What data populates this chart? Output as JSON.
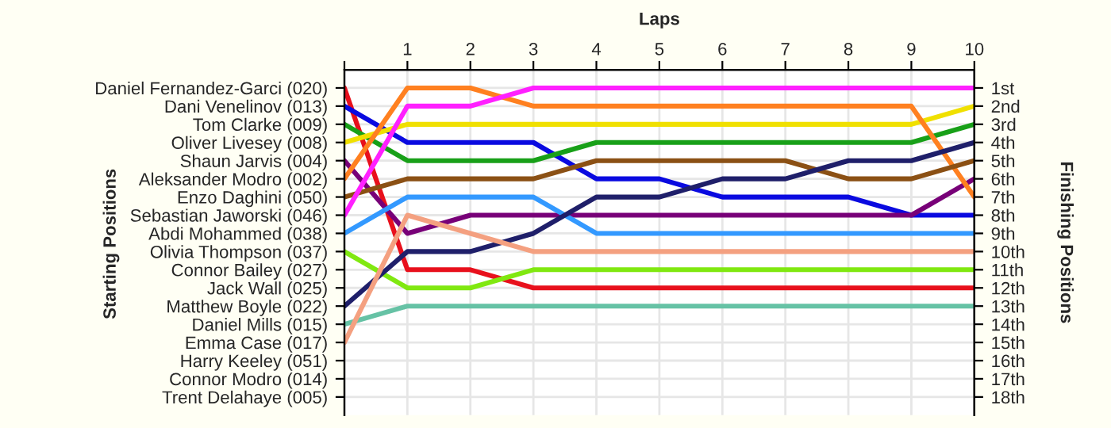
{
  "chart_data": {
    "type": "line",
    "xlabel": "Laps",
    "ylabel": "Finishing Positions",
    "x": [
      0,
      1,
      2,
      3,
      4,
      5,
      6,
      7,
      8,
      9,
      10
    ],
    "xlim": [
      0,
      10
    ],
    "xticks": [
      {
        "value": 0,
        "label": null
      },
      1,
      2,
      3,
      4,
      5,
      6,
      7,
      8,
      9,
      10
    ],
    "ylim": [
      19,
      0
    ],
    "yticks": [
      {
        "value": 1,
        "label": "1st"
      },
      {
        "value": 2,
        "label": "2nd"
      },
      {
        "value": 3,
        "label": "3rd"
      },
      {
        "value": 4,
        "label": "4th"
      },
      {
        "value": 5,
        "label": "5th"
      },
      {
        "value": 6,
        "label": "6th"
      },
      {
        "value": 7,
        "label": "7th"
      },
      {
        "value": 8,
        "label": "8th"
      },
      {
        "value": 9,
        "label": "9th"
      },
      {
        "value": 10,
        "label": "10th"
      },
      {
        "value": 11,
        "label": "11th"
      },
      {
        "value": 12,
        "label": "12th"
      },
      {
        "value": 13,
        "label": "13th"
      },
      {
        "value": 14,
        "label": "14th"
      },
      {
        "value": 15,
        "label": "15th"
      },
      {
        "value": 16,
        "label": "16th"
      },
      {
        "value": 17,
        "label": "17th"
      },
      {
        "value": 18,
        "label": "18th"
      }
    ],
    "annotations": [
      "Daniel Fernandez-Garci (020)",
      "Dani Venelinov (013)",
      "Tom Clarke (009)",
      "Oliver Livesey (008)",
      "Shaun Jarvis (004)",
      "Aleksander Modro (002)",
      "Enzo Daghini (050)",
      "Sebastian Jaworski (046)",
      "Abdi Mohammed (038)",
      "Olivia Thompson (037)",
      "Connor Bailey (027)",
      "Jack Wall (025)",
      "Matthew Boyle (022)",
      "Daniel Mills (015)",
      "Emma Case (017)",
      "Harry Keeley (051)",
      "Connor Modro (014)",
      "Trent Delahaye (005)",
      "Starting Positions"
    ],
    "grid": true,
    "legend": false,
    "marker": "none",
    "line_style": "solid",
    "series": [
      {
        "color": "#e8101c",
        "values": [
          1,
          11,
          11,
          12,
          12,
          12,
          12,
          12,
          12,
          12,
          12
        ]
      },
      {
        "color": "#0a0ae0",
        "values": [
          2,
          4,
          4,
          4,
          6,
          6,
          7,
          7,
          7,
          8,
          8
        ]
      },
      {
        "color": "#18a018",
        "values": [
          3,
          5,
          5,
          5,
          4,
          4,
          4,
          4,
          4,
          4,
          3
        ]
      },
      {
        "color": "#f0e000",
        "values": [
          4,
          3,
          3,
          3,
          3,
          3,
          3,
          3,
          3,
          3,
          2
        ]
      },
      {
        "color": "#780078",
        "values": [
          5,
          9,
          8,
          8,
          8,
          8,
          8,
          8,
          8,
          8,
          6
        ]
      },
      {
        "color": "#ff8020",
        "values": [
          6,
          1,
          1,
          2,
          2,
          2,
          2,
          2,
          2,
          2,
          7
        ]
      },
      {
        "color": "#8b5014",
        "values": [
          7,
          6,
          6,
          6,
          5,
          5,
          5,
          5,
          6,
          6,
          5
        ]
      },
      {
        "color": "#ff20ff",
        "values": [
          8,
          2,
          2,
          1,
          1,
          1,
          1,
          1,
          1,
          1,
          1
        ]
      },
      {
        "color": "#3399ff",
        "values": [
          9,
          7,
          7,
          7,
          9,
          9,
          9,
          9,
          9,
          9,
          9
        ]
      },
      {
        "color": "#80e810",
        "values": [
          10,
          12,
          12,
          11,
          11,
          11,
          11,
          11,
          11,
          11,
          11
        ]
      },
      {
        "color": "#1f1f6a",
        "values": [
          13,
          10,
          10,
          9,
          7,
          7,
          6,
          6,
          5,
          5,
          4
        ]
      },
      {
        "color": "#66c2a5",
        "values": [
          14,
          13,
          13,
          13,
          13,
          13,
          13,
          13,
          13,
          13,
          13
        ]
      },
      {
        "color": "#f4a080",
        "values": [
          15,
          8,
          9,
          10,
          10,
          10,
          10,
          10,
          10,
          10,
          10
        ]
      }
    ]
  }
}
